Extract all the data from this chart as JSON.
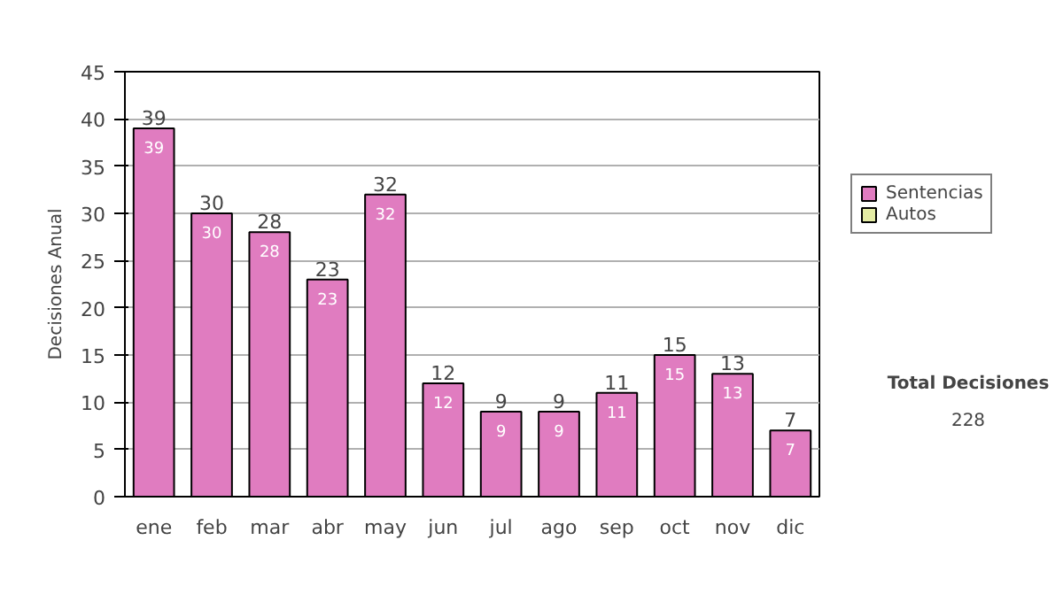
{
  "chart_data": {
    "type": "bar",
    "stacked": true,
    "ylabel": "Decisiones Anual",
    "categories": [
      "ene",
      "feb",
      "mar",
      "abr",
      "may",
      "jun",
      "jul",
      "ago",
      "sep",
      "oct",
      "nov",
      "dic"
    ],
    "series": [
      {
        "name": "Sentencias",
        "color": "#e07cc0",
        "values": [
          39,
          30,
          28,
          23,
          32,
          12,
          9,
          9,
          11,
          15,
          13,
          7
        ]
      },
      {
        "name": "Autos",
        "color": "#e4eca4",
        "values": [
          null,
          null,
          null,
          null,
          null,
          null,
          null,
          null,
          null,
          null,
          null,
          null
        ]
      }
    ],
    "totals": [
      "39",
      "30",
      "28",
      "23",
      "32",
      "12",
      "9",
      "9",
      "11",
      "15",
      "13",
      "7"
    ],
    "data_labels": true,
    "ylim": [
      0,
      45
    ],
    "yticks": [
      0,
      5,
      10,
      15,
      20,
      25,
      30,
      35,
      40,
      45
    ],
    "grid": "y",
    "legend": "right",
    "annotations": [
      "Total Decisiones",
      "228"
    ]
  }
}
